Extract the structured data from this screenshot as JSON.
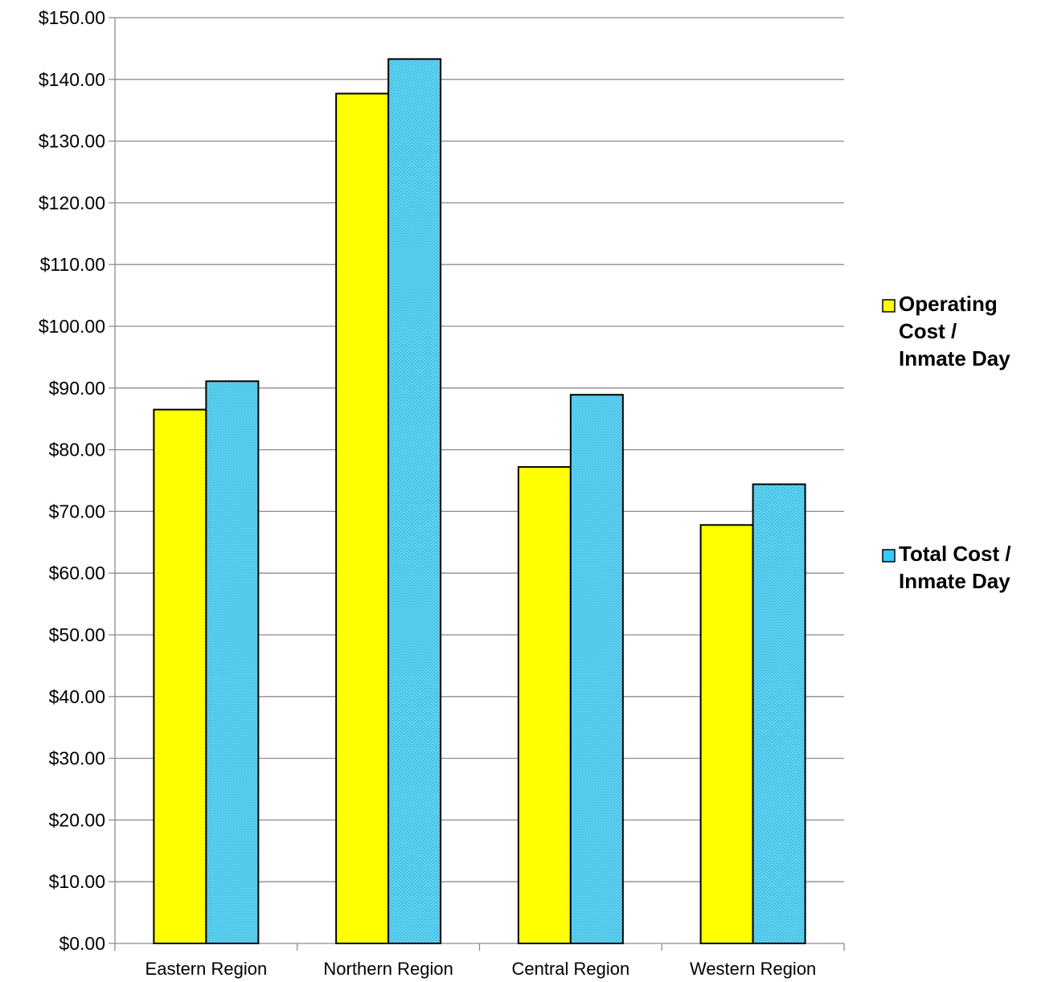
{
  "chart_data": {
    "type": "bar",
    "title": "",
    "xlabel": "",
    "ylabel": "",
    "categories": [
      "Eastern Region",
      "Northern Region",
      "Central Region",
      "Western Region"
    ],
    "series": [
      {
        "name": "Operating Cost / Inmate Day",
        "legend_lines": [
          "Operating",
          "Cost /",
          "Inmate Day"
        ],
        "color": "#FFFF00",
        "values": [
          86.5,
          137.7,
          77.2,
          67.8
        ]
      },
      {
        "name": "Total Cost / Inmate Day",
        "legend_lines": [
          "Total Cost /",
          "Inmate Day"
        ],
        "color": "#33CCFF",
        "values": [
          91.1,
          143.3,
          88.9,
          74.4
        ]
      }
    ],
    "ylim": [
      0,
      150
    ],
    "ytick_step": 10,
    "ytick_labels": [
      "$0.00",
      "$10.00",
      "$20.00",
      "$30.00",
      "$40.00",
      "$50.00",
      "$60.00",
      "$70.00",
      "$80.00",
      "$90.00",
      "$100.00",
      "$110.00",
      "$120.00",
      "$130.00",
      "$140.00",
      "$150.00"
    ],
    "grid": true,
    "legend_position": "right"
  }
}
